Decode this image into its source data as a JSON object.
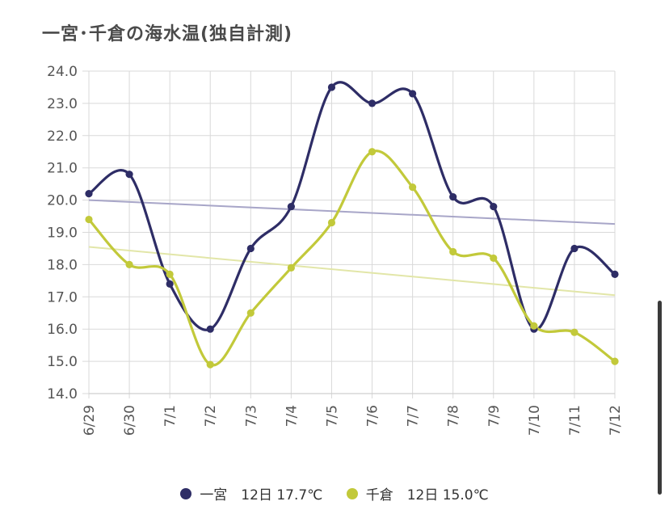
{
  "title": "一宮･千倉の海水温(独自計測)",
  "chart_data": {
    "type": "line",
    "title": "一宮･千倉の海水温(独自計測)",
    "categories": [
      "6/29",
      "6/30",
      "7/1",
      "7/2",
      "7/3",
      "7/4",
      "7/5",
      "7/6",
      "7/7",
      "7/8",
      "7/9",
      "7/10",
      "7/11",
      "7/12"
    ],
    "ylim": [
      14.0,
      24.0
    ],
    "yticks": [
      "14.0",
      "15.0",
      "16.0",
      "17.0",
      "18.0",
      "19.0",
      "20.0",
      "21.0",
      "22.0",
      "23.0",
      "24.0"
    ],
    "grid": true,
    "legend_position": "bottom",
    "series": [
      {
        "name": "一宮",
        "legend_label": "一宮　12日 17.7℃",
        "color": "#2e2d66",
        "values": [
          20.2,
          20.8,
          17.4,
          16.0,
          18.5,
          19.8,
          23.5,
          23.0,
          23.3,
          20.1,
          19.8,
          16.0,
          18.5,
          17.7
        ],
        "trend": [
          20.0,
          19.26
        ],
        "trend_color": "#a8a6c8"
      },
      {
        "name": "千倉",
        "legend_label": "千倉　12日 15.0℃",
        "color": "#c2c93a",
        "values": [
          19.4,
          18.0,
          17.7,
          14.9,
          16.5,
          17.9,
          19.3,
          21.5,
          20.4,
          18.4,
          18.2,
          16.1,
          15.9,
          15.0
        ],
        "trend": [
          18.55,
          17.05
        ],
        "trend_color": "#e2e6a8"
      }
    ]
  }
}
